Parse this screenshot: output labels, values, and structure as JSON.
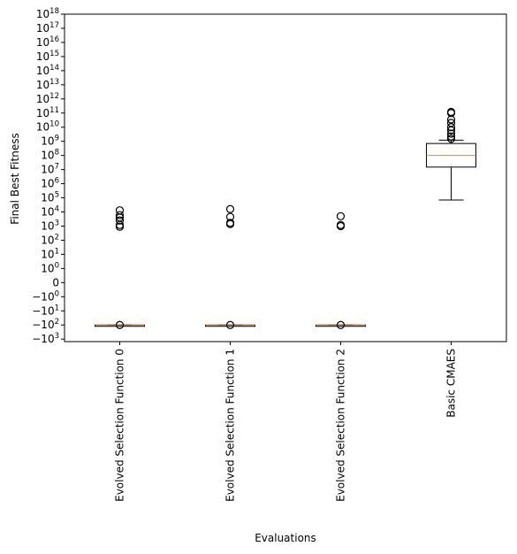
{
  "chart_data": {
    "type": "box",
    "xlabel": "Evaluations",
    "ylabel": "Final Best Fitness",
    "yscale": "symlog",
    "categories": [
      "Evolved Selection Function 0",
      "Evolved Selection Function 1",
      "Evolved Selection Function 2",
      "Basic CMAES"
    ],
    "y_ticks": [
      {
        "base": "−10",
        "exp": "3",
        "value": -1000
      },
      {
        "base": "−10",
        "exp": "2",
        "value": -100
      },
      {
        "base": "−10",
        "exp": "1",
        "value": -10
      },
      {
        "base": "−10",
        "exp": "0",
        "value": -1
      },
      {
        "base": "0",
        "exp": "",
        "value": 0
      },
      {
        "base": "10",
        "exp": "0",
        "value": 1
      },
      {
        "base": "10",
        "exp": "1",
        "value": 10
      },
      {
        "base": "10",
        "exp": "2",
        "value": 100
      },
      {
        "base": "10",
        "exp": "3",
        "value": 1000
      },
      {
        "base": "10",
        "exp": "4",
        "value": 10000
      },
      {
        "base": "10",
        "exp": "5",
        "value": 100000
      },
      {
        "base": "10",
        "exp": "6",
        "value": 1000000
      },
      {
        "base": "10",
        "exp": "7",
        "value": 10000000
      },
      {
        "base": "10",
        "exp": "8",
        "value": 100000000
      },
      {
        "base": "10",
        "exp": "9",
        "value": 1000000000
      },
      {
        "base": "10",
        "exp": "10",
        "value": 10000000000
      },
      {
        "base": "10",
        "exp": "11",
        "value": 100000000000
      },
      {
        "base": "10",
        "exp": "12",
        "value": 1000000000000
      },
      {
        "base": "10",
        "exp": "13",
        "value": 10000000000000
      },
      {
        "base": "10",
        "exp": "14",
        "value": 100000000000000
      },
      {
        "base": "10",
        "exp": "15",
        "value": 1000000000000000
      },
      {
        "base": "10",
        "exp": "16",
        "value": 10000000000000000
      },
      {
        "base": "10",
        "exp": "17",
        "value": 100000000000000000
      },
      {
        "base": "10",
        "exp": "18",
        "value": 1000000000000000000
      }
    ],
    "ylim": [
      -1500,
      1000000000000000000
    ],
    "boxes": [
      {
        "q1": -100,
        "median": -100,
        "q3": -100,
        "whisker_low": -100,
        "whisker_high": -100,
        "fliers": [
          -100,
          900,
          1200,
          2500,
          4000,
          6000,
          13000
        ]
      },
      {
        "q1": -100,
        "median": -100,
        "q3": -100,
        "whisker_low": -100,
        "whisker_high": -100,
        "fliers": [
          -100,
          1400,
          1700,
          4500,
          16000
        ]
      },
      {
        "q1": -100,
        "median": -100,
        "q3": -100,
        "whisker_low": -100,
        "whisker_high": -100,
        "fliers": [
          -100,
          1000,
          1200,
          5000
        ]
      },
      {
        "q1": 15000000,
        "median": 100000000,
        "q3": 700000000,
        "whisker_low": 70000,
        "whisker_high": 1200000000,
        "fliers": [
          1500000000,
          2200000000,
          3500000000,
          6000000000,
          10000000000,
          20000000000,
          35000000000,
          100000000000,
          120000000000
        ]
      }
    ],
    "grid": false,
    "colors": {
      "box": "#000000",
      "median": "#ff7f0e",
      "flier": "#000000"
    }
  }
}
